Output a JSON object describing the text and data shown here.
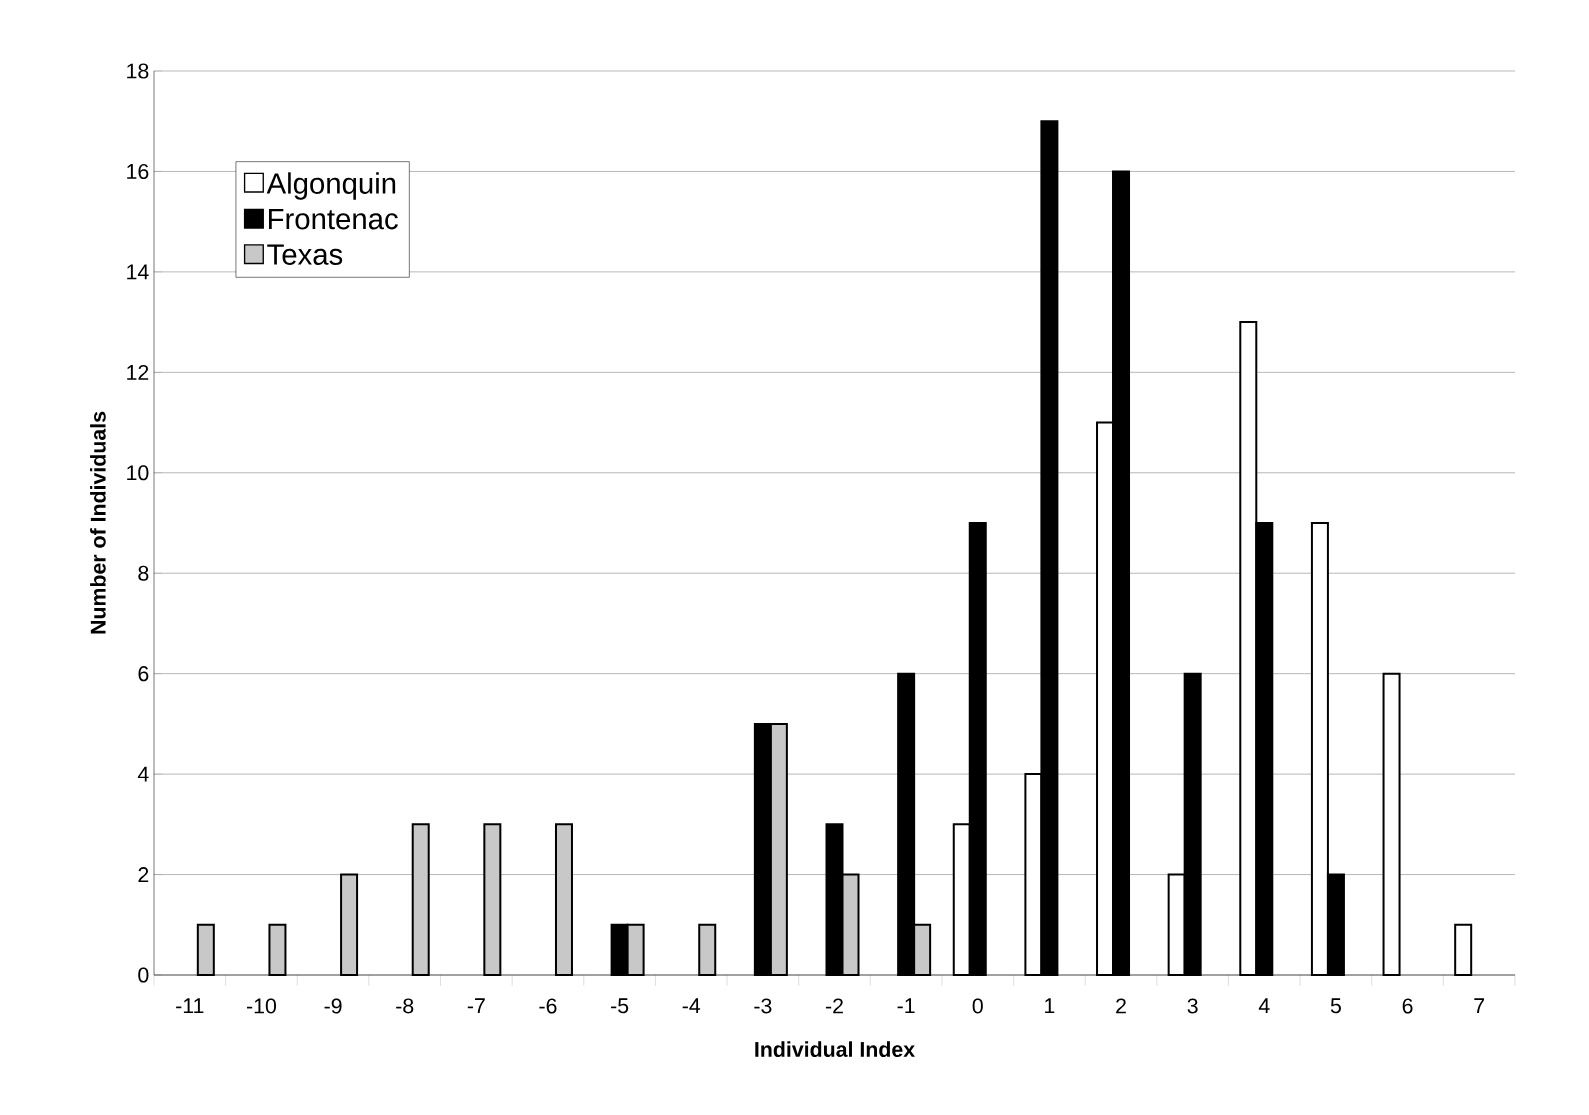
{
  "chart_data": {
    "type": "bar",
    "xlabel": "Individual Index",
    "ylabel": "Number of Individuals",
    "categories": [
      "-11",
      "-10",
      "-9",
      "-8",
      "-7",
      "-6",
      "-5",
      "-4",
      "-3",
      "-2",
      "-1",
      "0",
      "1",
      "2",
      "3",
      "4",
      "5",
      "6",
      "7"
    ],
    "series": [
      {
        "name": "Algonquin",
        "color": "#ffffff",
        "values": [
          null,
          null,
          null,
          null,
          null,
          null,
          null,
          null,
          null,
          null,
          null,
          3,
          4,
          11,
          2,
          13,
          9,
          6,
          1
        ]
      },
      {
        "name": "Frontenac",
        "color": "#000000",
        "values": [
          null,
          null,
          null,
          null,
          null,
          null,
          1,
          null,
          5,
          3,
          6,
          9,
          17,
          16,
          6,
          9,
          2,
          null,
          null
        ]
      },
      {
        "name": "Texas",
        "color": "#c8c8c8",
        "values": [
          1,
          1,
          2,
          3,
          3,
          3,
          1,
          1,
          5,
          2,
          1,
          null,
          null,
          null,
          null,
          null,
          null,
          null,
          null
        ]
      }
    ],
    "ylim": [
      0,
      18
    ],
    "yticks": [
      0,
      2,
      4,
      6,
      8,
      10,
      12,
      14,
      16,
      18
    ],
    "grid": "y",
    "legend": "top left"
  }
}
